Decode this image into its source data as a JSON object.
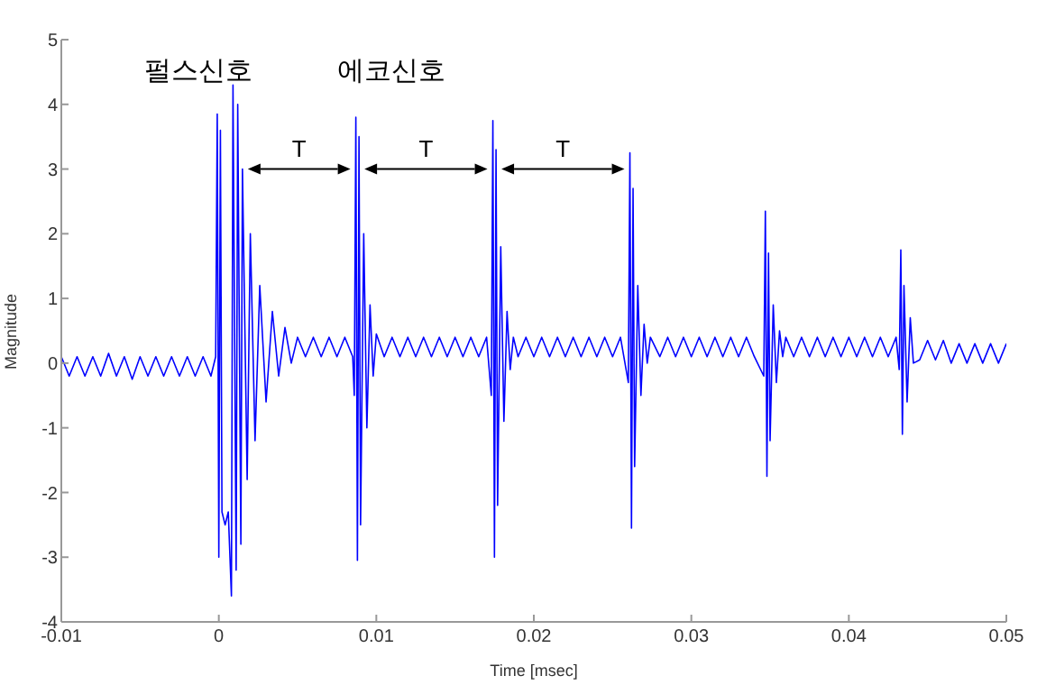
{
  "chart_data": {
    "type": "line",
    "xlabel": "Time [msec]",
    "ylabel": "Magnitude",
    "xlim": [
      -0.01,
      0.05
    ],
    "xticks": [
      -0.01,
      0,
      0.01,
      0.02,
      0.03,
      0.04,
      0.05
    ],
    "ylim": [
      -4,
      5
    ],
    "yticks": [
      -4,
      -3,
      -2,
      -1,
      0,
      1,
      2,
      3,
      4,
      5
    ],
    "grid": false,
    "marker": "none",
    "line_style": "solid",
    "annotations": [
      "펄스신호",
      "에코신호",
      "T",
      "T",
      "T"
    ],
    "series": [
      {
        "color": "#0000ff",
        "x": [
          -0.01,
          -0.0095,
          -0.009,
          -0.0085,
          -0.008,
          -0.0075,
          -0.007,
          -0.0065,
          -0.006,
          -0.0055,
          -0.005,
          -0.0045,
          -0.004,
          -0.0035,
          -0.003,
          -0.0025,
          -0.002,
          -0.0015,
          -0.001,
          -0.0005,
          -0.0002,
          -0.0001,
          0,
          0.0001,
          0.0002,
          0.0004,
          0.0006,
          0.0008,
          0.0009,
          0.0011,
          0.0012,
          0.0014,
          0.0015,
          0.0018,
          0.002,
          0.0023,
          0.0026,
          0.003,
          0.0034,
          0.0038,
          0.0042,
          0.0046,
          0.005,
          0.0055,
          0.006,
          0.0065,
          0.007,
          0.0075,
          0.008,
          0.0085,
          0.0086,
          0.0087,
          0.0088,
          0.0089,
          0.009,
          0.0092,
          0.0094,
          0.0096,
          0.0098,
          0.01,
          0.0105,
          0.011,
          0.0115,
          0.012,
          0.0125,
          0.013,
          0.0135,
          0.014,
          0.0145,
          0.015,
          0.0155,
          0.016,
          0.0165,
          0.017,
          0.0173,
          0.0174,
          0.0175,
          0.0176,
          0.0177,
          0.0179,
          0.0181,
          0.0183,
          0.0185,
          0.0187,
          0.019,
          0.0195,
          0.02,
          0.0205,
          0.021,
          0.0215,
          0.022,
          0.0225,
          0.023,
          0.0235,
          0.024,
          0.0245,
          0.025,
          0.0255,
          0.026,
          0.0261,
          0.0262,
          0.0263,
          0.0264,
          0.0266,
          0.0268,
          0.027,
          0.0272,
          0.0274,
          0.028,
          0.0285,
          0.029,
          0.0295,
          0.03,
          0.0305,
          0.031,
          0.0315,
          0.032,
          0.0325,
          0.033,
          0.0335,
          0.034,
          0.0346,
          0.0347,
          0.0348,
          0.0349,
          0.035,
          0.0352,
          0.0354,
          0.0356,
          0.0358,
          0.036,
          0.0365,
          0.037,
          0.0375,
          0.038,
          0.0385,
          0.039,
          0.0395,
          0.04,
          0.0405,
          0.041,
          0.0415,
          0.042,
          0.0425,
          0.043,
          0.0432,
          0.0433,
          0.0434,
          0.0435,
          0.0437,
          0.0439,
          0.0441,
          0.0445,
          0.045,
          0.0455,
          0.046,
          0.0465,
          0.047,
          0.0475,
          0.048,
          0.0485,
          0.049,
          0.0495,
          0.05
        ],
        "values": [
          0.1,
          -0.2,
          0.1,
          -0.2,
          0.1,
          -0.2,
          0.15,
          -0.2,
          0.1,
          -0.25,
          0.1,
          -0.2,
          0.1,
          -0.2,
          0.1,
          -0.2,
          0.1,
          -0.2,
          0.1,
          -0.2,
          0.1,
          3.85,
          -3.0,
          3.6,
          -2.3,
          -2.5,
          -2.3,
          -3.6,
          4.3,
          -3.2,
          4.0,
          -2.8,
          3.0,
          -1.8,
          2.0,
          -1.2,
          1.2,
          -0.6,
          0.8,
          -0.2,
          0.55,
          0.0,
          0.4,
          0.1,
          0.4,
          0.1,
          0.4,
          0.1,
          0.4,
          0.1,
          -0.5,
          3.8,
          -3.05,
          3.5,
          -2.5,
          2.0,
          -1.0,
          0.9,
          -0.2,
          0.45,
          0.1,
          0.4,
          0.1,
          0.4,
          0.1,
          0.4,
          0.1,
          0.4,
          0.1,
          0.4,
          0.1,
          0.4,
          0.1,
          0.4,
          -0.5,
          3.75,
          -3.0,
          3.3,
          -2.2,
          1.8,
          -0.9,
          0.8,
          -0.1,
          0.4,
          0.1,
          0.4,
          0.1,
          0.4,
          0.1,
          0.4,
          0.1,
          0.4,
          0.1,
          0.4,
          0.1,
          0.4,
          0.1,
          0.4,
          -0.3,
          3.25,
          -2.55,
          2.7,
          -1.6,
          1.2,
          -0.5,
          0.6,
          0.0,
          0.4,
          0.1,
          0.4,
          0.1,
          0.4,
          0.1,
          0.4,
          0.1,
          0.4,
          0.1,
          0.4,
          0.1,
          0.4,
          0.1,
          -0.2,
          2.35,
          -1.75,
          1.7,
          -1.2,
          0.9,
          -0.3,
          0.5,
          0.1,
          0.4,
          0.1,
          0.4,
          0.1,
          0.4,
          0.1,
          0.4,
          0.1,
          0.4,
          0.1,
          0.4,
          0.1,
          0.4,
          0.1,
          0.4,
          -0.1,
          1.75,
          -1.1,
          1.2,
          -0.6,
          0.7,
          0.0,
          0.05,
          0.35,
          0.05,
          0.35,
          0.0,
          0.3,
          0.0,
          0.3,
          0.0,
          0.3,
          0.0,
          0.3
        ]
      }
    ]
  }
}
